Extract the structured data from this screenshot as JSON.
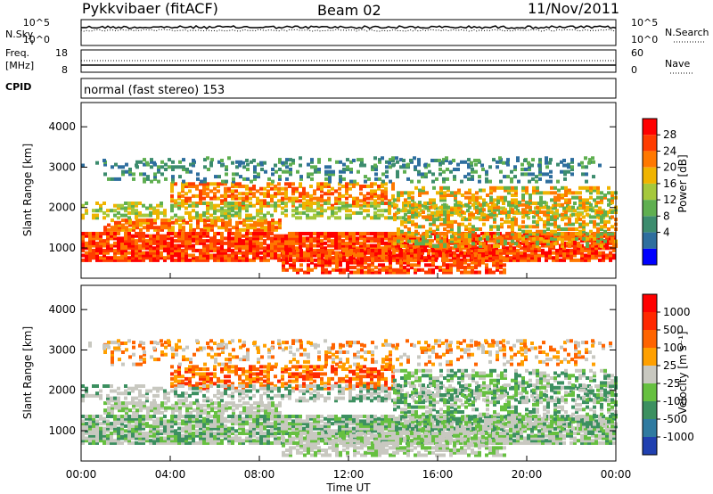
{
  "header": {
    "radar": "Pykkvibaer (fitACF)",
    "beam": "Beam 02",
    "date": "11/Nov/2011"
  },
  "top_panels": {
    "nsky_label": "N.Sky",
    "nsky_ticks": [
      "10^5",
      "10^0"
    ],
    "nsearch_label": "N.Search",
    "nsearch_ticks": [
      "10^5",
      "10^0"
    ],
    "freq_label": "Freq.",
    "freq_unit": "[MHz]",
    "freq_ticks": [
      "18",
      "8"
    ],
    "nave_label": "Nave",
    "nave_ticks": [
      "60",
      "0"
    ],
    "cpid_label": "CPID",
    "cpid_text": "normal (fast stereo) 153"
  },
  "chart_data": [
    {
      "type": "heatmap",
      "name": "power-panel",
      "ylabel": "Slant Range [km]",
      "ylim": [
        250,
        4600
      ],
      "yticks": [
        "1000",
        "2000",
        "3000",
        "4000"
      ],
      "ytick_values": [
        1000,
        2000,
        3000,
        4000
      ],
      "xlim": [
        0,
        24
      ],
      "colorbar_label": "Power [dB]",
      "colorbar_ticks": [
        "28",
        "24",
        "20",
        "16",
        "12",
        "8",
        "4"
      ],
      "colorbar_colors": [
        "#0000ff",
        "#2e6e9e",
        "#3c8c6e",
        "#5faf50",
        "#a5c83c",
        "#f0b400",
        "#ff7800",
        "#ff3c00",
        "#ff0000"
      ]
    },
    {
      "type": "heatmap",
      "name": "velocity-panel",
      "ylabel": "Slant Range [km]",
      "ylim": [
        250,
        4600
      ],
      "yticks": [
        "1000",
        "2000",
        "3000",
        "4000"
      ],
      "ytick_values": [
        1000,
        2000,
        3000,
        4000
      ],
      "xlim": [
        0,
        24
      ],
      "xlabel": "Time UT",
      "xticks": [
        "00:00",
        "04:00",
        "08:00",
        "12:00",
        "16:00",
        "20:00",
        "00:00"
      ],
      "xtick_values": [
        0,
        4,
        8,
        12,
        16,
        20,
        24
      ],
      "colorbar_label": "Velocity [m s⁻¹]",
      "colorbar_ticks": [
        "1000",
        "500",
        "100",
        "25",
        "-25",
        "-100",
        "-500",
        "-1000"
      ],
      "colorbar_colors": [
        "#2040b0",
        "#2f7aa0",
        "#3c9060",
        "#66c040",
        "#c8c8c0",
        "#ffa000",
        "#ff6400",
        "#ff2800",
        "#ff0000"
      ]
    }
  ]
}
